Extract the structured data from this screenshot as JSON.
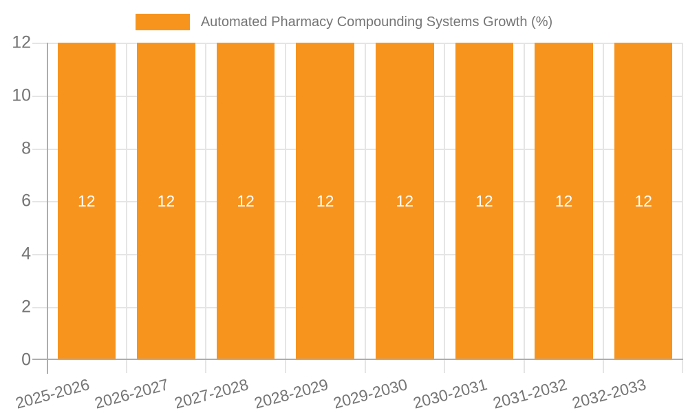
{
  "chart_data": {
    "type": "bar",
    "title": "Automated Pharmacy Compounding Systems Growth (%)",
    "categories": [
      "2025-2026",
      "2026-2027",
      "2027-2028",
      "2028-2029",
      "2029-2030",
      "2030-2031",
      "2031-2032",
      "2032-2033"
    ],
    "series": [
      {
        "name": "Automated Pharmacy Compounding Systems Growth (%)",
        "color": "#F7941E",
        "values": [
          12,
          12,
          12,
          12,
          12,
          12,
          12,
          12
        ]
      }
    ],
    "bar_value_labels": [
      "12",
      "12",
      "12",
      "12",
      "12",
      "12",
      "12",
      "12"
    ],
    "bar_label_color": "#FFFFFF",
    "xlabel": "",
    "ylabel": "",
    "ylim": [
      0,
      12
    ],
    "y_ticks": [
      0,
      2,
      4,
      6,
      8,
      10,
      12
    ],
    "grid": true,
    "legend": {
      "position": "top",
      "entries": [
        {
          "label": "Automated Pharmacy Compounding Systems Growth (%)",
          "color": "#F7941E"
        }
      ]
    },
    "colors": {
      "axis_line": "#ADADAD",
      "gridline": "#E5E5E5",
      "tick_label": "#757575"
    }
  }
}
